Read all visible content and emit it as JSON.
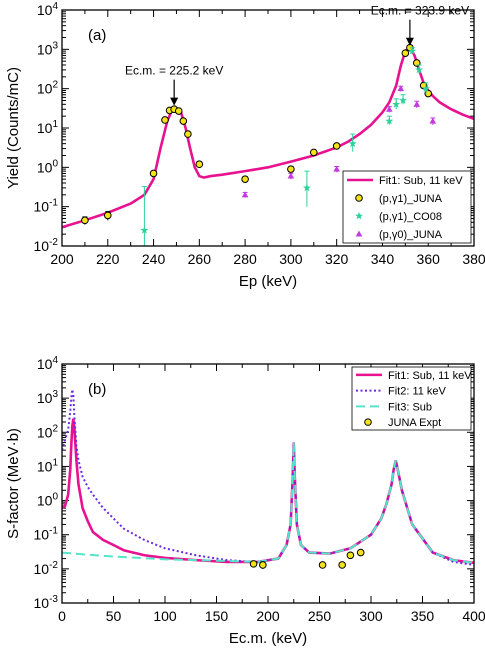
{
  "chart_data": [
    {
      "type": "scatter",
      "panel_label": "(a)",
      "xlabel": "Ep (keV)",
      "ylabel": "Yield (Counts/mC)",
      "xlim": [
        200,
        380
      ],
      "ylim_log10": [
        -2,
        4
      ],
      "y_scale": "log",
      "xticks": [
        "200",
        "220",
        "240",
        "260",
        "280",
        "300",
        "320",
        "340",
        "360",
        "380"
      ],
      "yticks": [
        "10-2",
        "10-1",
        "100",
        "101",
        "102",
        "103",
        "104"
      ],
      "legend_position": "bottom-right",
      "annotations": [
        {
          "text": "Ec.m. = 225.2 keV",
          "arrow_x": 249,
          "arrow_y": 33
        },
        {
          "text": "Ec.m. = 323.9 keV",
          "arrow_x": 352,
          "arrow_y": 1100
        }
      ],
      "series": [
        {
          "name": "Fit1: Sub, 11 keV",
          "kind": "line",
          "color": "#e8118f",
          "x": [
            200,
            210,
            220,
            230,
            236,
            240,
            243,
            246,
            248,
            250,
            252,
            254,
            256,
            258,
            260,
            262,
            265,
            270,
            280,
            290,
            300,
            310,
            320,
            325,
            330,
            335,
            340,
            343,
            346,
            348,
            350,
            352,
            354,
            356,
            358,
            360,
            362,
            365,
            370,
            375,
            380
          ],
          "y": [
            0.03,
            0.045,
            0.07,
            0.12,
            0.2,
            0.5,
            3,
            15,
            28,
            32,
            25,
            10,
            3,
            1,
            0.6,
            0.55,
            0.6,
            0.65,
            0.8,
            1.0,
            1.4,
            2.0,
            3.2,
            4.5,
            7,
            12,
            25,
            45,
            120,
            380,
            900,
            1150,
            700,
            300,
            140,
            90,
            65,
            45,
            30,
            22,
            17
          ]
        },
        {
          "name": "(p,γ1)_JUNA",
          "kind": "points",
          "marker": "circle",
          "color": "#f5e31a",
          "x": [
            210,
            220,
            240,
            245,
            247,
            249,
            251,
            253,
            255,
            260,
            280,
            300,
            310,
            320,
            350,
            352,
            355,
            358,
            360
          ],
          "y": [
            0.045,
            0.06,
            0.7,
            16,
            28,
            30,
            27,
            15,
            7,
            1.2,
            0.5,
            0.9,
            2.4,
            3.5,
            800,
            1100,
            450,
            120,
            75
          ],
          "yerr": [
            0.01,
            0.015,
            0.05,
            2,
            3,
            3,
            3,
            2,
            1,
            0.2,
            0.08,
            0.15,
            0.3,
            0.4,
            80,
            100,
            60,
            20,
            12
          ]
        },
        {
          "name": "(p,γ1)_CO08",
          "kind": "points",
          "marker": "star",
          "color": "#2ad39a",
          "x": [
            236,
            307,
            327,
            343,
            346,
            349,
            353,
            356,
            359
          ],
          "y": [
            0.025,
            0.3,
            4,
            15,
            40,
            50,
            900,
            300,
            100
          ],
          "yerr_low": [
            0.017,
            0.2,
            1.5,
            3,
            10,
            10,
            100,
            60,
            30
          ],
          "yerr_high": [
            0.3,
            0.5,
            3,
            5,
            15,
            20,
            200,
            100,
            40
          ]
        },
        {
          "name": "(p,γ0)_JUNA",
          "kind": "points",
          "marker": "triangle",
          "color": "#c33be0",
          "x": [
            280,
            300,
            320,
            343,
            348,
            355,
            362
          ],
          "y": [
            0.2,
            0.6,
            0.9,
            30,
            100,
            40,
            15
          ],
          "yerr": [
            0.03,
            0.1,
            0.15,
            5,
            15,
            8,
            3
          ]
        }
      ]
    },
    {
      "type": "line",
      "panel_label": "(b)",
      "xlabel": "Ec.m. (keV)",
      "ylabel": "S-factor (MeV·b)",
      "xlim": [
        0,
        400
      ],
      "ylim_log10": [
        -3,
        4
      ],
      "y_scale": "log",
      "xticks": [
        "0",
        "50",
        "100",
        "150",
        "200",
        "250",
        "300",
        "350",
        "400"
      ],
      "yticks": [
        "10-3",
        "10-2",
        "10-1",
        "100",
        "101",
        "102",
        "103",
        "104"
      ],
      "legend_position": "top-right",
      "series": [
        {
          "name": "Fit1: Sub, 11 keV",
          "kind": "line",
          "style": "solid",
          "color": "#e8118f",
          "x": [
            0,
            3,
            6,
            8,
            9,
            10,
            11,
            12,
            14,
            16,
            20,
            25,
            30,
            40,
            50,
            60,
            80,
            100,
            130,
            160,
            190,
            210,
            218,
            222,
            224,
            225,
            226,
            228,
            232,
            240,
            260,
            280,
            300,
            310,
            315,
            320,
            322,
            324,
            326,
            330,
            340,
            360,
            380,
            400
          ],
          "y": [
            0.6,
            0.7,
            1.5,
            8,
            40,
            150,
            250,
            130,
            15,
            3,
            0.6,
            0.25,
            0.12,
            0.07,
            0.05,
            0.035,
            0.025,
            0.021,
            0.018,
            0.016,
            0.016,
            0.02,
            0.05,
            0.2,
            5,
            50,
            5,
            0.2,
            0.05,
            0.03,
            0.028,
            0.04,
            0.1,
            0.3,
            0.8,
            3,
            8,
            15,
            8,
            2,
            0.2,
            0.03,
            0.018,
            0.015
          ]
        },
        {
          "name": "Fit2: 11 keV",
          "kind": "line",
          "style": "dotted",
          "color": "#6a2be0",
          "x": [
            0,
            3,
            6,
            8,
            9,
            10,
            11,
            12,
            14,
            16,
            20,
            25,
            30,
            40,
            50,
            60,
            80,
            100,
            130,
            160,
            190,
            210,
            218,
            222,
            224,
            225,
            226,
            228,
            232,
            240,
            260,
            280,
            300,
            310,
            315,
            320,
            322,
            324,
            326,
            330,
            340,
            360,
            380,
            400
          ],
          "y": [
            30,
            60,
            120,
            400,
            1000,
            1800,
            1200,
            300,
            40,
            15,
            5,
            2.5,
            1.5,
            0.6,
            0.3,
            0.15,
            0.07,
            0.04,
            0.025,
            0.018,
            0.016,
            0.02,
            0.05,
            0.2,
            5,
            50,
            5,
            0.2,
            0.05,
            0.03,
            0.028,
            0.04,
            0.1,
            0.3,
            0.8,
            3,
            8,
            15,
            8,
            2,
            0.2,
            0.03,
            0.016,
            0.013
          ]
        },
        {
          "name": "Fit3: Sub",
          "kind": "line",
          "style": "dashed",
          "color": "#52e6c8",
          "x": [
            0,
            25,
            50,
            75,
            100,
            130,
            160,
            190,
            210,
            218,
            222,
            224,
            225,
            226,
            228,
            232,
            240,
            260,
            280,
            300,
            310,
            315,
            320,
            322,
            324,
            326,
            330,
            340,
            360,
            380,
            400
          ],
          "y": [
            0.03,
            0.026,
            0.023,
            0.021,
            0.019,
            0.018,
            0.017,
            0.016,
            0.02,
            0.05,
            0.2,
            5,
            50,
            5,
            0.2,
            0.05,
            0.03,
            0.028,
            0.04,
            0.1,
            0.3,
            0.8,
            3,
            8,
            15,
            8,
            2,
            0.2,
            0.03,
            0.018,
            0.015
          ]
        },
        {
          "name": "JUNA Expt",
          "kind": "points",
          "marker": "circle",
          "color": "#f5e31a",
          "x": [
            186,
            195,
            253,
            272,
            280,
            290
          ],
          "y": [
            0.014,
            0.013,
            0.013,
            0.013,
            0.025,
            0.03
          ],
          "yerr": [
            0.002,
            0.003,
            0.001,
            0.002,
            0.002,
            0.002
          ]
        }
      ]
    }
  ]
}
